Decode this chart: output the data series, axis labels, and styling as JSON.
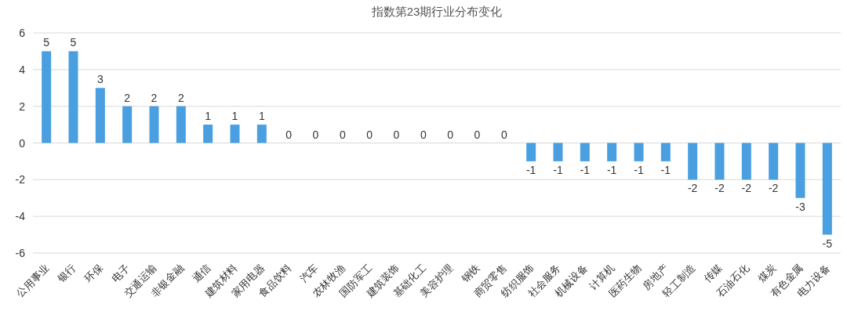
{
  "chart_data": {
    "type": "bar",
    "title": "指数第23期行业分布变化",
    "categories": [
      "公用事业",
      "银行",
      "环保",
      "电子",
      "交通运输",
      "非银金融",
      "通信",
      "建筑材料",
      "家用电器",
      "食品饮料",
      "汽车",
      "农林牧渔",
      "国防军工",
      "建筑装饰",
      "基础化工",
      "美容护理",
      "钢铁",
      "商贸零售",
      "纺织服饰",
      "社会服务",
      "机械设备",
      "计算机",
      "医药生物",
      "房地产",
      "轻工制造",
      "传媒",
      "石油石化",
      "煤炭",
      "有色金属",
      "电力设备"
    ],
    "values": [
      5,
      5,
      3,
      2,
      2,
      2,
      1,
      1,
      1,
      0,
      0,
      0,
      0,
      0,
      0,
      0,
      0,
      0,
      -1,
      -1,
      -1,
      -1,
      -1,
      -1,
      -2,
      -2,
      -2,
      -2,
      -3,
      -5
    ],
    "color": "#4a9fe0",
    "ylim": [
      -6,
      6
    ],
    "yticks": [
      -6,
      -4,
      -2,
      0,
      2,
      4,
      6
    ],
    "grid": "y",
    "data_labels": true
  }
}
